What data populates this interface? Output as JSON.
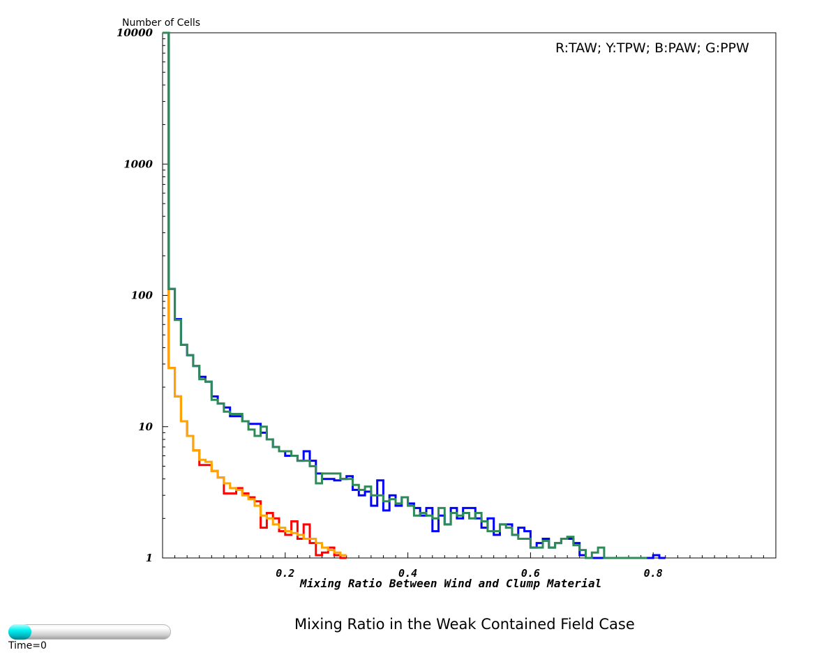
{
  "chart_data": {
    "type": "line",
    "step": true,
    "ylabel": "Number of Cells",
    "xlabel": "Mixing Ratio Between Wind and Clump Material",
    "title": "Mixing Ratio in the Weak Contained Field Case",
    "legend": "R:TAW; Y:TPW; B:PAW; G:PPW",
    "legend_position": "top-right",
    "yscale": "log",
    "ylim": [
      1,
      10000
    ],
    "xlim": [
      0,
      1
    ],
    "grid": false,
    "x_ticks": [
      "0.2",
      "0.4",
      "0.6",
      "0.8"
    ],
    "y_ticks": [
      "1",
      "10",
      "100",
      "1000",
      "10000"
    ],
    "bin_width": 0.01,
    "series": [
      {
        "color": "#ff0000",
        "values": [
          11000,
          28,
          17,
          11,
          8.5,
          6.6,
          5.1,
          5.1,
          4.6,
          4.1,
          3.1,
          3.1,
          3.4,
          3.1,
          2.9,
          2.7,
          1.7,
          2.2,
          2.0,
          1.6,
          1.5,
          1.9,
          1.4,
          1.8,
          1.3,
          1.05,
          1.1,
          1.2,
          1.05,
          1.0
        ]
      },
      {
        "color": "#ffa500",
        "values": [
          11000,
          28,
          17,
          11,
          8.5,
          6.6,
          5.6,
          5.4,
          4.6,
          4.1,
          3.7,
          3.4,
          3.3,
          3.0,
          2.8,
          2.5,
          2.1,
          2.0,
          1.8,
          1.7,
          1.6,
          1.55,
          1.5,
          1.4,
          1.4,
          1.3,
          1.2,
          1.15,
          1.1,
          1.05
        ]
      },
      {
        "color": "#0000ff",
        "values": [
          11000,
          112,
          66,
          42,
          35,
          29,
          24,
          22,
          17,
          15,
          14,
          12,
          12,
          11,
          10.5,
          10.5,
          9,
          8,
          7,
          6.5,
          6,
          6,
          5.5,
          6.5,
          5.5,
          4.4,
          4.0,
          4.0,
          3.9,
          4.0,
          4.2,
          3.3,
          3.0,
          3.2,
          2.5,
          3.9,
          2.3,
          3.0,
          2.5,
          2.9,
          2.6,
          2.4,
          2.1,
          2.4,
          1.6,
          2.1,
          1.8,
          2.4,
          2.0,
          2.4,
          2.4,
          2.0,
          1.7,
          2.0,
          1.5,
          1.8,
          1.8,
          1.5,
          1.7,
          1.6,
          1.2,
          1.3,
          1.4,
          1.2,
          1.3,
          1.4,
          1.4,
          1.3,
          1.05,
          1.0,
          1.0,
          1.0,
          1.0,
          1.0,
          1.0,
          1.0,
          1.0,
          1.0,
          1.0,
          1.0,
          1.05,
          1.0
        ]
      },
      {
        "color": "#2e8b57",
        "values": [
          11000,
          112,
          65,
          42,
          35,
          29,
          23,
          22,
          16,
          15,
          13,
          12.5,
          12.5,
          11,
          9.5,
          8.5,
          10,
          8,
          7,
          6.5,
          6.5,
          6,
          5.5,
          5.5,
          5.0,
          3.7,
          4.4,
          4.4,
          4.4,
          4.0,
          4.0,
          3.6,
          3.3,
          3.5,
          3.0,
          3.0,
          2.7,
          2.8,
          2.6,
          2.9,
          2.5,
          2.1,
          2.2,
          2.1,
          2.0,
          2.4,
          1.8,
          2.2,
          2.1,
          2.2,
          2.0,
          2.2,
          1.9,
          1.6,
          1.6,
          1.8,
          1.7,
          1.5,
          1.4,
          1.4,
          1.2,
          1.2,
          1.35,
          1.2,
          1.3,
          1.4,
          1.45,
          1.25,
          1.15,
          1.0,
          1.1,
          1.2,
          1.0,
          1.0,
          1.0,
          1.0,
          1.0,
          1.0,
          1.0
        ]
      }
    ]
  },
  "time_slider": {
    "label": "Time=0",
    "progress": 0.0
  }
}
